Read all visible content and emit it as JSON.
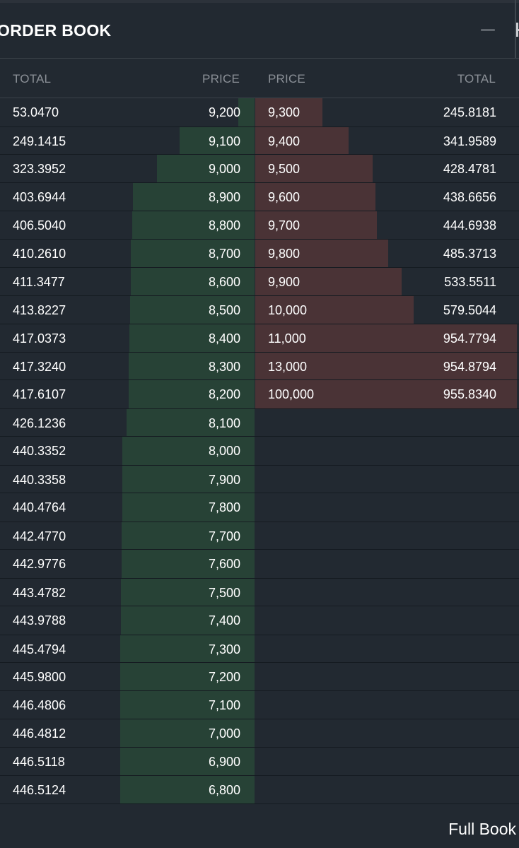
{
  "panel": {
    "title": "ORDER BOOK"
  },
  "icons": {
    "minimize": "minimize-icon",
    "expand": "plus-icon"
  },
  "colors": {
    "background": "#222931",
    "bid_depth": "#274236",
    "ask_depth": "#4a3336",
    "header_text": "#8b9097"
  },
  "columns": {
    "bid_total": "TOTAL",
    "bid_price": "PRICE",
    "ask_price": "PRICE",
    "ask_total": "TOTAL"
  },
  "rows": [
    {
      "bid_total": "53.0470",
      "bid_price": "9,200",
      "ask_price": "9,300",
      "ask_total": "245.8181"
    },
    {
      "bid_total": "249.1415",
      "bid_price": "9,100",
      "ask_price": "9,400",
      "ask_total": "341.9589"
    },
    {
      "bid_total": "323.3952",
      "bid_price": "9,000",
      "ask_price": "9,500",
      "ask_total": "428.4781"
    },
    {
      "bid_total": "403.6944",
      "bid_price": "8,900",
      "ask_price": "9,600",
      "ask_total": "438.6656"
    },
    {
      "bid_total": "406.5040",
      "bid_price": "8,800",
      "ask_price": "9,700",
      "ask_total": "444.6938"
    },
    {
      "bid_total": "410.2610",
      "bid_price": "8,700",
      "ask_price": "9,800",
      "ask_total": "485.3713"
    },
    {
      "bid_total": "411.3477",
      "bid_price": "8,600",
      "ask_price": "9,900",
      "ask_total": "533.5511"
    },
    {
      "bid_total": "413.8227",
      "bid_price": "8,500",
      "ask_price": "10,000",
      "ask_total": "579.5044"
    },
    {
      "bid_total": "417.0373",
      "bid_price": "8,400",
      "ask_price": "11,000",
      "ask_total": "954.7794"
    },
    {
      "bid_total": "417.3240",
      "bid_price": "8,300",
      "ask_price": "13,000",
      "ask_total": "954.8794"
    },
    {
      "bid_total": "417.6107",
      "bid_price": "8,200",
      "ask_price": "100,000",
      "ask_total": "955.8340"
    },
    {
      "bid_total": "426.1236",
      "bid_price": "8,100",
      "ask_price": "",
      "ask_total": ""
    },
    {
      "bid_total": "440.3352",
      "bid_price": "8,000",
      "ask_price": "",
      "ask_total": ""
    },
    {
      "bid_total": "440.3358",
      "bid_price": "7,900",
      "ask_price": "",
      "ask_total": ""
    },
    {
      "bid_total": "440.4764",
      "bid_price": "7,800",
      "ask_price": "",
      "ask_total": ""
    },
    {
      "bid_total": "442.4770",
      "bid_price": "7,700",
      "ask_price": "",
      "ask_total": ""
    },
    {
      "bid_total": "442.9776",
      "bid_price": "7,600",
      "ask_price": "",
      "ask_total": ""
    },
    {
      "bid_total": "443.4782",
      "bid_price": "7,500",
      "ask_price": "",
      "ask_total": ""
    },
    {
      "bid_total": "443.9788",
      "bid_price": "7,400",
      "ask_price": "",
      "ask_total": ""
    },
    {
      "bid_total": "445.4794",
      "bid_price": "7,300",
      "ask_price": "",
      "ask_total": ""
    },
    {
      "bid_total": "445.9800",
      "bid_price": "7,200",
      "ask_price": "",
      "ask_total": ""
    },
    {
      "bid_total": "446.4806",
      "bid_price": "7,100",
      "ask_price": "",
      "ask_total": ""
    },
    {
      "bid_total": "446.4812",
      "bid_price": "7,000",
      "ask_price": "",
      "ask_total": ""
    },
    {
      "bid_total": "446.5118",
      "bid_price": "6,900",
      "ask_price": "",
      "ask_total": ""
    },
    {
      "bid_total": "446.5124",
      "bid_price": "6,800",
      "ask_price": "",
      "ask_total": ""
    }
  ],
  "footer": {
    "full_book_label": "Full Book"
  }
}
